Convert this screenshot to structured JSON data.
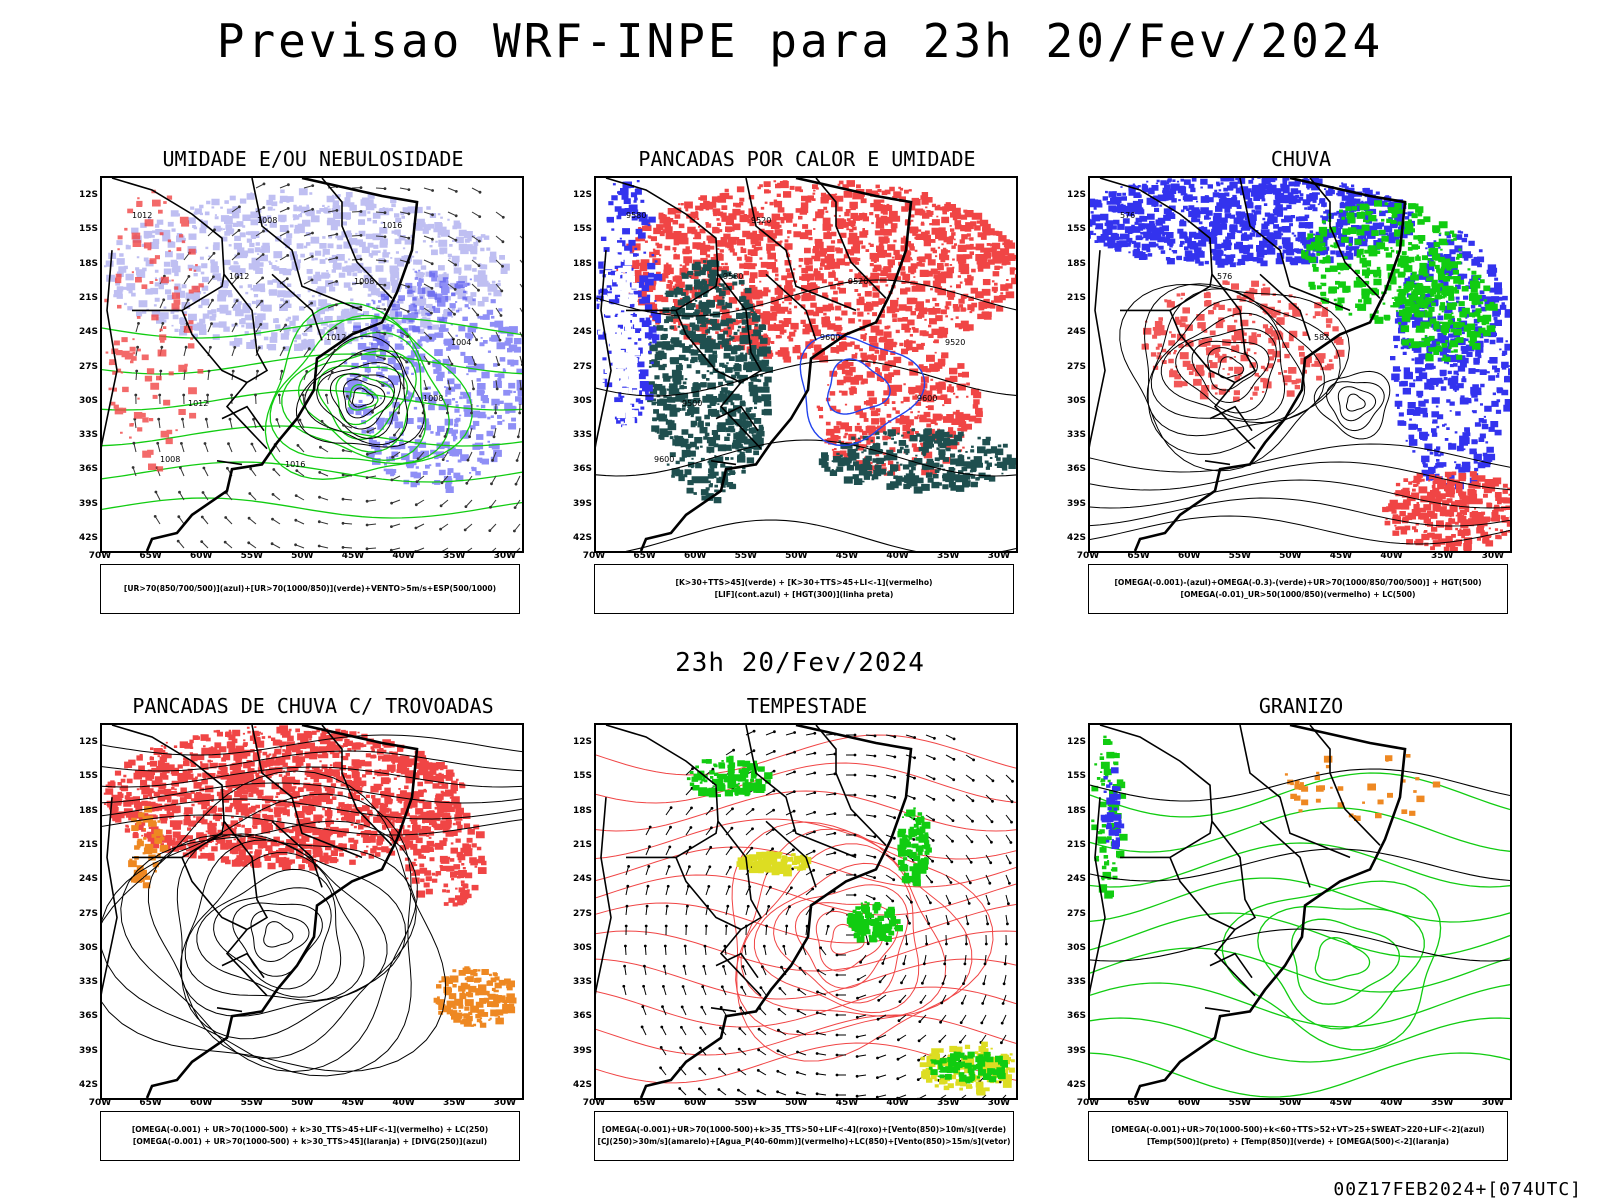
{
  "header": {
    "title": "Previsao WRF-INPE  para 23h 20/Fev/2024"
  },
  "middle": {
    "subtitle": "23h 20/Fev/2024"
  },
  "footer": {
    "run_code": "00Z17FEB2024+[074UTC]"
  },
  "axes": {
    "lat_labels": [
      "12S",
      "15S",
      "18S",
      "21S",
      "24S",
      "27S",
      "30S",
      "33S",
      "36S",
      "39S",
      "42S"
    ],
    "lon_labels": [
      "70W",
      "65W",
      "60W",
      "55W",
      "50W",
      "45W",
      "40W",
      "35W",
      "30W"
    ]
  },
  "panels": [
    {
      "id": "umidade",
      "title": "UMIDADE E/OU NEBULOSIDADE",
      "legend": [
        "[UR>70(850/700/500)](azul)+[UR>70(1000/850)](verde)+VENTO>5m/s+ESP(500/1000)"
      ],
      "contour_labels": [
        "1012",
        "1012",
        "1012",
        "1008",
        "1008",
        "1008",
        "1008",
        "1004",
        "1012",
        "1016",
        "1016"
      ]
    },
    {
      "id": "pancadas-calor",
      "title": "PANCADAS POR CALOR E UMIDADE",
      "legend": [
        "[K>30+TTS>45](verde) + [K>30+TTS>45+LI<-1](vermelho)",
        "[LIF](cont.azul) + [HGT(300)](linha preta)"
      ],
      "contour_labels": [
        "9580",
        "9580",
        "9600",
        "9600",
        "9600",
        "9520",
        "9520",
        "9520",
        "9500"
      ]
    },
    {
      "id": "chuva",
      "title": "CHUVA",
      "legend": [
        "[OMEGA(-0.001)-(azul)+OMEGA(-0.3)-(verde)+UR>70(1000/850/700/500)] + HGT(500)",
        "[OMEGA(-0.01)_UR>50(1000/850)(vermelho) + LC(500)"
      ],
      "contour_labels": [
        "576",
        "576",
        "582"
      ]
    },
    {
      "id": "pancadas-trovoadas",
      "title": "PANCADAS DE CHUVA C/ TROVOADAS",
      "legend": [
        "[OMEGA(-0.001) + UR>70(1000-500) + k>30_TTS>45+LIF<-1](vermelho) + LC(250)",
        "[OMEGA(-0.001) + UR>70(1000-500) + k>30_TTS>45](laranja) + [DIVG(250)](azul)"
      ],
      "contour_labels": []
    },
    {
      "id": "tempestade",
      "title": "TEMPESTADE",
      "legend": [
        "[OMEGA(-0.001)+UR>70(1000-500)+k>35_TTS>50+LIF<-4](roxo)+[Vento(850)>10m/s](verde)",
        "[CJ(250)>30m/s](amarelo)+[Agua_P(40-60mm)](vermelho)+LC(850)+[Vento(850)>15m/s](vetor)"
      ],
      "contour_labels": []
    },
    {
      "id": "granizo",
      "title": "GRANIZO",
      "legend": [
        "[OMEGA(-0.001)+UR>70(1000-500)+k<60+TTS>52+VT>25+SWEAT>220+LIF<-2](azul)",
        "[Temp(500)](preto) + [Temp(850)](verde) + [OMEGA(500)<-2](laranja)"
      ],
      "contour_labels": []
    }
  ],
  "colors": {
    "blue": "#3333ee",
    "lightblue": "#aaaaee",
    "red": "#f04545",
    "green": "#11cc11",
    "darkteal": "#1f4f4f",
    "orange": "#ee8822",
    "yellow": "#dddd22",
    "black": "#000000"
  }
}
